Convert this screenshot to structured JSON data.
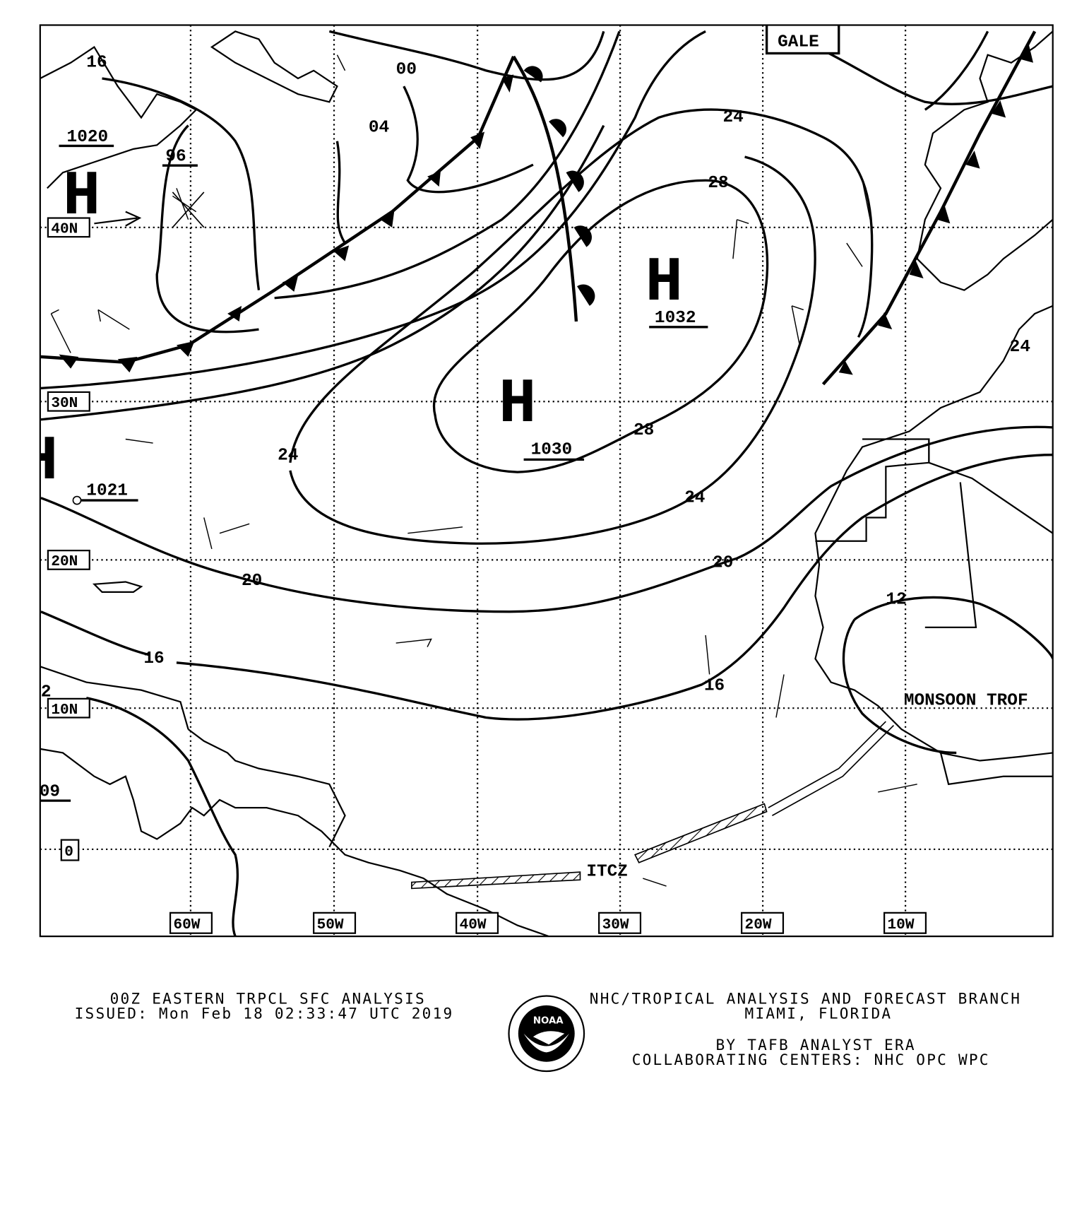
{
  "map": {
    "longitude_labels": [
      "60W",
      "50W",
      "40W",
      "30W",
      "20W",
      "10W"
    ],
    "latitude_labels": [
      "40N",
      "30N",
      "20N",
      "10N",
      "0"
    ],
    "isobar_labels": [
      "16",
      "96",
      "00",
      "04",
      "24",
      "28",
      "28",
      "24",
      "24",
      "20",
      "20",
      "16",
      "16",
      "12",
      "24",
      "2"
    ],
    "pressure_centers": [
      {
        "type": "H",
        "value": "1020"
      },
      {
        "type": "H",
        "value": "1032"
      },
      {
        "type": "H",
        "value": "1030"
      },
      {
        "type": "H",
        "value": "1021"
      },
      {
        "type": "",
        "value": "09"
      }
    ],
    "warning_box": "GALE",
    "itcz_label": "ITCZ",
    "monsoon_label": "MONSOON TROF"
  },
  "footer": {
    "title": "00Z EASTERN TRPCL SFC ANALYSIS",
    "issued": "ISSUED: Mon Feb 18 02:33:47 UTC 2019",
    "branch": "NHC/TROPICAL ANALYSIS AND FORECAST BRANCH",
    "location": "MIAMI,  FLORIDA",
    "analyst": "BY TAFB ANALYST  ERA",
    "centers": "COLLABORATING CENTERS: NHC OPC WPC",
    "logo_text": "NOAA"
  }
}
